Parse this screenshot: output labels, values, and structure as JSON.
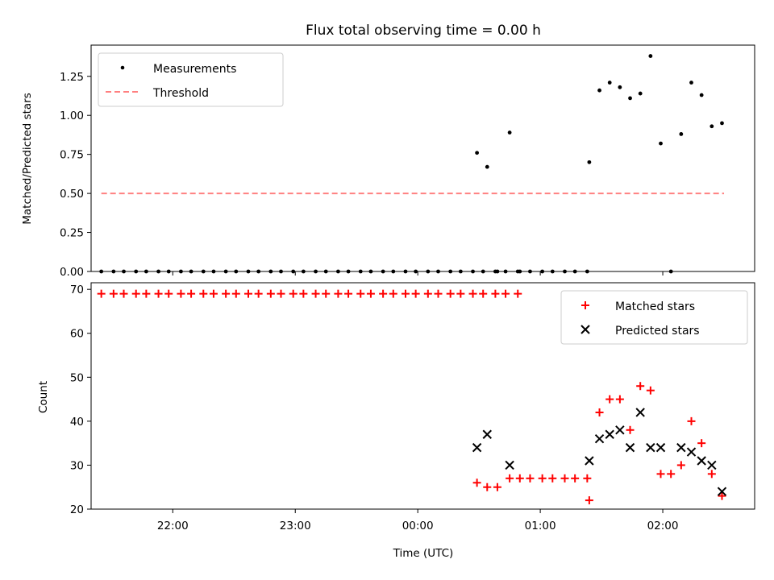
{
  "title": "Flux total observing time = 0.00 h",
  "chart_data": [
    {
      "type": "scatter",
      "panel": "top",
      "ylabel": "Matched/Predicted stars",
      "xlabel": "",
      "xlim": [
        "21:20",
        "02:45"
      ],
      "ylim": [
        0,
        1.45
      ],
      "yticks": [
        0.0,
        0.25,
        0.5,
        0.75,
        1.0,
        1.25
      ],
      "yticklabels": [
        "0.00",
        "0.25",
        "0.50",
        "0.75",
        "1.00",
        "1.25"
      ],
      "legend_position": "top-left",
      "legend": [
        "Measurements",
        "Threshold"
      ],
      "colors": {
        "measurements": "#000000",
        "threshold": "#ff8080"
      },
      "threshold": {
        "x": [
          "21:25",
          "02:30"
        ],
        "y": 0.5
      },
      "series": [
        {
          "name": "Measurements",
          "points": [
            [
              "21:25",
              0
            ],
            [
              "21:31",
              0
            ],
            [
              "21:36",
              0
            ],
            [
              "21:42",
              0
            ],
            [
              "21:47",
              0
            ],
            [
              "21:53",
              0
            ],
            [
              "21:58",
              0
            ],
            [
              "22:04",
              0
            ],
            [
              "22:09",
              0
            ],
            [
              "22:15",
              0
            ],
            [
              "22:20",
              0
            ],
            [
              "22:26",
              0
            ],
            [
              "22:31",
              0
            ],
            [
              "22:37",
              0
            ],
            [
              "22:42",
              0
            ],
            [
              "22:48",
              0
            ],
            [
              "22:53",
              0
            ],
            [
              "22:59",
              0
            ],
            [
              "23:04",
              0
            ],
            [
              "23:10",
              0
            ],
            [
              "23:15",
              0
            ],
            [
              "23:21",
              0
            ],
            [
              "23:26",
              0
            ],
            [
              "23:32",
              0
            ],
            [
              "23:37",
              0
            ],
            [
              "23:43",
              0
            ],
            [
              "23:48",
              0
            ],
            [
              "23:54",
              0
            ],
            [
              "23:59",
              0
            ],
            [
              "00:05",
              0
            ],
            [
              "00:10",
              0
            ],
            [
              "00:16",
              0
            ],
            [
              "00:21",
              0
            ],
            [
              "00:27",
              0
            ],
            [
              "00:32",
              0
            ],
            [
              "00:38",
              0
            ],
            [
              "00:43",
              0
            ],
            [
              "00:49",
              0
            ],
            [
              "00:29",
              0.76
            ],
            [
              "00:34",
              0.67
            ],
            [
              "00:45",
              0.89
            ],
            [
              "00:39",
              0
            ],
            [
              "00:50",
              0
            ],
            [
              "00:55",
              0
            ],
            [
              "01:01",
              0
            ],
            [
              "01:06",
              0
            ],
            [
              "01:12",
              0
            ],
            [
              "01:17",
              0
            ],
            [
              "01:23",
              0
            ],
            [
              "01:24",
              0.7
            ],
            [
              "01:29",
              1.16
            ],
            [
              "01:34",
              1.21
            ],
            [
              "01:39",
              1.18
            ],
            [
              "01:44",
              1.11
            ],
            [
              "01:49",
              1.14
            ],
            [
              "01:54",
              1.38
            ],
            [
              "01:59",
              0.82
            ],
            [
              "02:04",
              0
            ],
            [
              "02:09",
              0.88
            ],
            [
              "02:14",
              1.21
            ],
            [
              "02:19",
              1.13
            ],
            [
              "02:24",
              0.93
            ],
            [
              "02:29",
              0.95
            ]
          ]
        }
      ]
    },
    {
      "type": "scatter",
      "panel": "bottom",
      "xlabel": "Time (UTC)",
      "ylabel": "Count",
      "xlim": [
        "21:20",
        "02:45"
      ],
      "ylim": [
        20,
        71.5
      ],
      "xticks": [
        "22:00",
        "23:00",
        "00:00",
        "01:00",
        "02:00"
      ],
      "yticks": [
        20,
        30,
        40,
        50,
        60,
        70
      ],
      "legend_position": "top-right",
      "legend": [
        "Matched stars",
        "Predicted stars"
      ],
      "colors": {
        "matched": "#ff0000",
        "predicted": "#000000"
      },
      "series": [
        {
          "name": "Matched stars",
          "points": [
            [
              "21:25",
              69
            ],
            [
              "21:31",
              69
            ],
            [
              "21:36",
              69
            ],
            [
              "21:42",
              69
            ],
            [
              "21:47",
              69
            ],
            [
              "21:53",
              69
            ],
            [
              "21:58",
              69
            ],
            [
              "22:04",
              69
            ],
            [
              "22:09",
              69
            ],
            [
              "22:15",
              69
            ],
            [
              "22:20",
              69
            ],
            [
              "22:26",
              69
            ],
            [
              "22:31",
              69
            ],
            [
              "22:37",
              69
            ],
            [
              "22:42",
              69
            ],
            [
              "22:48",
              69
            ],
            [
              "22:53",
              69
            ],
            [
              "22:59",
              69
            ],
            [
              "23:04",
              69
            ],
            [
              "23:10",
              69
            ],
            [
              "23:15",
              69
            ],
            [
              "23:21",
              69
            ],
            [
              "23:26",
              69
            ],
            [
              "23:32",
              69
            ],
            [
              "23:37",
              69
            ],
            [
              "23:43",
              69
            ],
            [
              "23:48",
              69
            ],
            [
              "23:54",
              69
            ],
            [
              "23:59",
              69
            ],
            [
              "00:05",
              69
            ],
            [
              "00:10",
              69
            ],
            [
              "00:16",
              69
            ],
            [
              "00:21",
              69
            ],
            [
              "00:27",
              69
            ],
            [
              "00:32",
              69
            ],
            [
              "00:38",
              69
            ],
            [
              "00:43",
              69
            ],
            [
              "00:49",
              69
            ],
            [
              "00:29",
              26
            ],
            [
              "00:34",
              25
            ],
            [
              "00:39",
              25
            ],
            [
              "00:45",
              27
            ],
            [
              "00:50",
              27
            ],
            [
              "00:55",
              27
            ],
            [
              "01:01",
              27
            ],
            [
              "01:06",
              27
            ],
            [
              "01:12",
              27
            ],
            [
              "01:17",
              27
            ],
            [
              "01:23",
              27
            ],
            [
              "01:24",
              22
            ],
            [
              "01:29",
              42
            ],
            [
              "01:34",
              45
            ],
            [
              "01:39",
              45
            ],
            [
              "01:44",
              38
            ],
            [
              "01:49",
              48
            ],
            [
              "01:54",
              47
            ],
            [
              "01:59",
              28
            ],
            [
              "02:04",
              28
            ],
            [
              "02:09",
              30
            ],
            [
              "02:14",
              40
            ],
            [
              "02:19",
              35
            ],
            [
              "02:24",
              28
            ],
            [
              "02:29",
              23
            ]
          ]
        },
        {
          "name": "Predicted stars",
          "points": [
            [
              "00:29",
              34
            ],
            [
              "00:34",
              37
            ],
            [
              "00:45",
              30
            ],
            [
              "01:24",
              31
            ],
            [
              "01:29",
              36
            ],
            [
              "01:34",
              37
            ],
            [
              "01:39",
              38
            ],
            [
              "01:44",
              34
            ],
            [
              "01:49",
              42
            ],
            [
              "01:54",
              34
            ],
            [
              "01:59",
              34
            ],
            [
              "02:09",
              34
            ],
            [
              "02:14",
              33
            ],
            [
              "02:19",
              31
            ],
            [
              "02:24",
              30
            ],
            [
              "02:29",
              24
            ]
          ]
        }
      ]
    }
  ]
}
